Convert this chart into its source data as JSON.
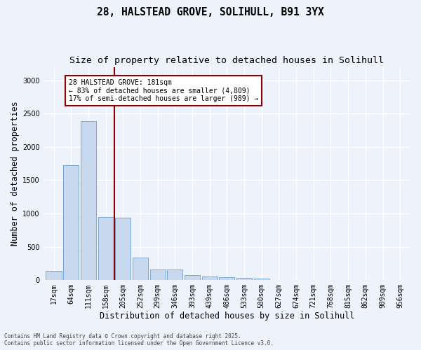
{
  "title_line1": "28, HALSTEAD GROVE, SOLIHULL, B91 3YX",
  "title_line2": "Size of property relative to detached houses in Solihull",
  "xlabel": "Distribution of detached houses by size in Solihull",
  "ylabel": "Number of detached properties",
  "categories": [
    "17sqm",
    "64sqm",
    "111sqm",
    "158sqm",
    "205sqm",
    "252sqm",
    "299sqm",
    "346sqm",
    "393sqm",
    "439sqm",
    "486sqm",
    "533sqm",
    "580sqm",
    "627sqm",
    "674sqm",
    "721sqm",
    "768sqm",
    "815sqm",
    "862sqm",
    "909sqm",
    "956sqm"
  ],
  "values": [
    140,
    1720,
    2390,
    950,
    940,
    340,
    160,
    160,
    80,
    50,
    45,
    30,
    20,
    0,
    0,
    0,
    0,
    0,
    0,
    0,
    0
  ],
  "bar_color": "#c8d9ef",
  "bar_edge_color": "#6a9fd0",
  "vline_color": "#8b0000",
  "annotation_line1": "28 HALSTEAD GROVE: 181sqm",
  "annotation_line2": "← 83% of detached houses are smaller (4,809)",
  "annotation_line3": "17% of semi-detached houses are larger (989) →",
  "ylim": [
    0,
    3200
  ],
  "yticks": [
    0,
    500,
    1000,
    1500,
    2000,
    2500,
    3000
  ],
  "footnote1": "Contains HM Land Registry data © Crown copyright and database right 2025.",
  "footnote2": "Contains public sector information licensed under the Open Government Licence v3.0.",
  "bg_color": "#eef2fb",
  "grid_color": "#ffffff",
  "title_fontsize": 10.5,
  "subtitle_fontsize": 9.5,
  "axis_label_fontsize": 8.5,
  "tick_fontsize": 7,
  "footnote_fontsize": 5.5
}
